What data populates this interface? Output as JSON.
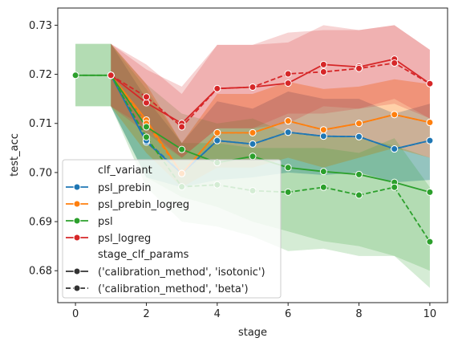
{
  "chart_data": {
    "type": "line",
    "xlabel": "stage",
    "ylabel": "test_acc",
    "xlim": [
      -0.5,
      10.5
    ],
    "ylim": [
      0.6735,
      0.7335
    ],
    "x_ticks": [
      0,
      2,
      4,
      6,
      8,
      10
    ],
    "y_ticks": [
      0.68,
      0.69,
      0.7,
      0.71,
      0.72,
      0.73
    ],
    "y_tick_labels": [
      "0.68",
      "0.69",
      "0.70",
      "0.71",
      "0.72",
      "0.73"
    ],
    "grid": false,
    "legend_position": "lower-left",
    "legend": {
      "hue_title": "clf_variant",
      "style_title": "stage_clf_params",
      "style_entries": [
        {
          "label": "('calibration_method', 'isotonic')",
          "dash": "solid"
        },
        {
          "label": "('calibration_method', 'beta')",
          "dash": "dashed"
        }
      ]
    },
    "series": [
      {
        "name": "psl_prebin",
        "color": "#1f77b4",
        "isotonic": {
          "x": [
            1,
            2,
            3,
            4,
            5,
            6,
            7,
            8,
            9,
            10
          ],
          "y": [
            0.7198,
            0.7062,
            0.6998,
            0.7065,
            0.7058,
            0.7082,
            0.7074,
            0.7073,
            0.7048,
            0.7065
          ],
          "band_low": [
            0.7135,
            0.699,
            0.697,
            0.6985,
            0.699,
            0.7,
            0.6995,
            0.7,
            0.698,
            0.6985
          ],
          "band_high": [
            0.7262,
            0.715,
            0.706,
            0.7145,
            0.713,
            0.7165,
            0.715,
            0.715,
            0.712,
            0.714
          ]
        },
        "beta": {
          "x": [
            1,
            2,
            3,
            4,
            5,
            6,
            7,
            8,
            9,
            10
          ],
          "y": [
            0.7198,
            0.7065,
            0.6998,
            0.7065,
            0.7058,
            0.7082,
            0.7074,
            0.7073,
            0.7048,
            0.7065
          ],
          "band_low": [
            0.7135,
            0.699,
            0.697,
            0.6985,
            0.699,
            0.7,
            0.6995,
            0.7,
            0.698,
            0.6985
          ],
          "band_high": [
            0.7262,
            0.715,
            0.706,
            0.7145,
            0.713,
            0.7165,
            0.715,
            0.715,
            0.712,
            0.714
          ]
        }
      },
      {
        "name": "psl_prebin_logreg",
        "color": "#ff7f0e",
        "isotonic": {
          "x": [
            1,
            2,
            3,
            4,
            5,
            6,
            7,
            8,
            9,
            10
          ],
          "y": [
            0.7198,
            0.7107,
            0.6998,
            0.7081,
            0.7081,
            0.7105,
            0.7087,
            0.71,
            0.7118,
            0.7102
          ],
          "band_low": [
            0.7135,
            0.704,
            0.697,
            0.701,
            0.701,
            0.703,
            0.701,
            0.703,
            0.705,
            0.703
          ],
          "band_high": [
            0.7262,
            0.718,
            0.706,
            0.716,
            0.716,
            0.7185,
            0.717,
            0.7175,
            0.719,
            0.718
          ]
        },
        "beta": {
          "x": [
            1,
            2,
            3,
            4,
            5,
            6,
            7,
            8,
            9,
            10
          ],
          "y": [
            0.7198,
            0.71,
            0.6998,
            0.7081,
            0.7081,
            0.7105,
            0.7087,
            0.71,
            0.7118,
            0.7102
          ],
          "band_low": [
            0.7135,
            0.704,
            0.697,
            0.701,
            0.701,
            0.703,
            0.701,
            0.703,
            0.705,
            0.703
          ],
          "band_high": [
            0.7262,
            0.718,
            0.706,
            0.716,
            0.716,
            0.7185,
            0.717,
            0.7175,
            0.719,
            0.718
          ]
        }
      },
      {
        "name": "psl",
        "color": "#2ca02c",
        "isotonic": {
          "x": [
            0,
            1,
            2,
            3,
            4,
            5,
            6,
            7,
            8,
            9,
            10
          ],
          "y": [
            0.7198,
            0.7198,
            0.7093,
            0.7047,
            0.702,
            0.7033,
            0.701,
            0.7002,
            0.6996,
            0.698,
            0.696
          ],
          "band_low": [
            0.7135,
            0.7135,
            0.699,
            0.695,
            0.693,
            0.69,
            0.688,
            0.686,
            0.685,
            0.683,
            0.68
          ],
          "band_high": [
            0.7262,
            0.7262,
            0.718,
            0.712,
            0.71,
            0.711,
            0.708,
            0.7075,
            0.707,
            0.7055,
            0.703
          ]
        },
        "beta": {
          "x": [
            0,
            1,
            2,
            3,
            4,
            5,
            6,
            7,
            8,
            9,
            10
          ],
          "y": [
            0.7198,
            0.7198,
            0.7072,
            0.6971,
            0.6975,
            0.6963,
            0.696,
            0.697,
            0.6954,
            0.697,
            0.6859
          ],
          "band_low": [
            0.7135,
            0.7135,
            0.697,
            0.69,
            0.689,
            0.687,
            0.684,
            0.6845,
            0.683,
            0.683,
            0.6765
          ],
          "band_high": [
            0.7262,
            0.7262,
            0.717,
            0.706,
            0.706,
            0.705,
            0.705,
            0.705,
            0.704,
            0.707,
            0.697
          ]
        }
      },
      {
        "name": "psl_logreg",
        "color": "#d62728",
        "isotonic": {
          "x": [
            1,
            2,
            3,
            4,
            5,
            6,
            7,
            8,
            9,
            10
          ],
          "y": [
            0.7198,
            0.7142,
            0.71,
            0.7171,
            0.7174,
            0.7182,
            0.722,
            0.7215,
            0.7231,
            0.7181
          ],
          "band_low": [
            0.7135,
            0.708,
            0.703,
            0.709,
            0.709,
            0.71,
            0.7135,
            0.713,
            0.715,
            0.711
          ],
          "band_high": [
            0.7262,
            0.721,
            0.7175,
            0.726,
            0.726,
            0.7265,
            0.73,
            0.729,
            0.73,
            0.725
          ]
        },
        "beta": {
          "x": [
            1,
            2,
            3,
            4,
            5,
            6,
            7,
            8,
            9,
            10
          ],
          "y": [
            0.7198,
            0.7154,
            0.7093,
            0.7171,
            0.7174,
            0.7201,
            0.7205,
            0.7212,
            0.7223,
            0.7181
          ],
          "band_low": [
            0.7135,
            0.709,
            0.703,
            0.709,
            0.709,
            0.712,
            0.712,
            0.713,
            0.714,
            0.711
          ],
          "band_high": [
            0.7262,
            0.722,
            0.716,
            0.726,
            0.726,
            0.7285,
            0.729,
            0.729,
            0.73,
            0.725
          ]
        }
      }
    ]
  }
}
